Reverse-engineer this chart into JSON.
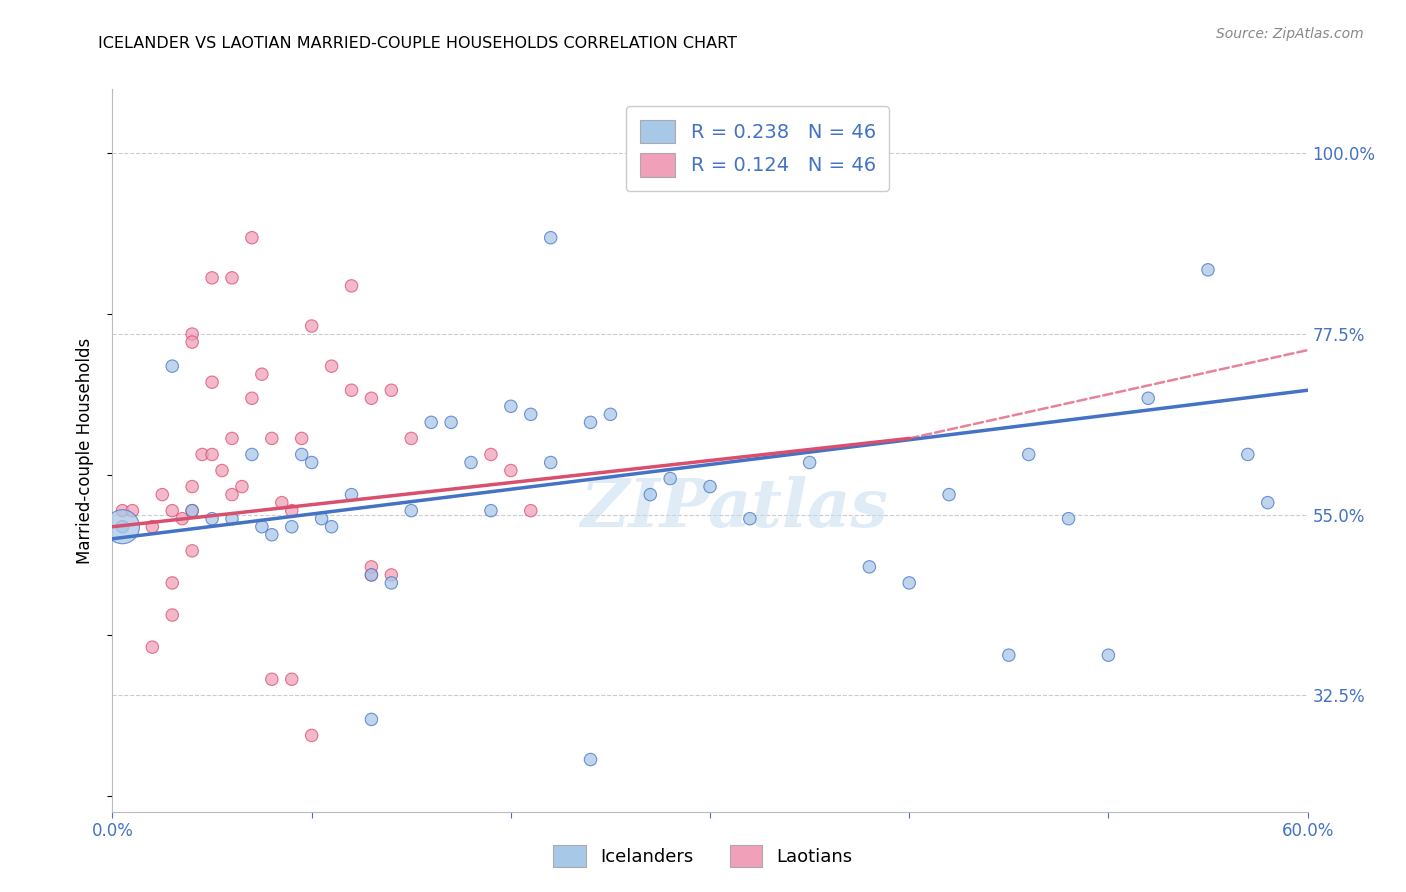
{
  "title": "ICELANDER VS LAOTIAN MARRIED-COUPLE HOUSEHOLDS CORRELATION CHART",
  "source": "Source: ZipAtlas.com",
  "ylabel": "Married-couple Households",
  "xlim": [
    0.0,
    0.6
  ],
  "ylim": [
    0.18,
    1.08
  ],
  "x_ticks": [
    0.0,
    0.1,
    0.2,
    0.3,
    0.4,
    0.5,
    0.6
  ],
  "x_tick_labels": [
    "0.0%",
    "",
    "",
    "",
    "",
    "",
    "60.0%"
  ],
  "y_ticks": [
    0.325,
    0.55,
    0.775,
    1.0
  ],
  "y_tick_labels": [
    "32.5%",
    "55.0%",
    "77.5%",
    "100.0%"
  ],
  "legend_blue_r": "0.238",
  "legend_blue_n": "46",
  "legend_pink_r": "0.124",
  "legend_pink_n": "46",
  "legend_label_blue": "Icelanders",
  "legend_label_pink": "Laotians",
  "blue_color": "#a8c8e8",
  "pink_color": "#f0a0b8",
  "line_blue": "#4472c4",
  "line_pink": "#d94f6e",
  "watermark": "ZIPatlas",
  "blue_x": [
    0.005,
    0.03,
    0.04,
    0.05,
    0.06,
    0.07,
    0.075,
    0.08,
    0.09,
    0.095,
    0.1,
    0.105,
    0.11,
    0.12,
    0.13,
    0.14,
    0.15,
    0.16,
    0.17,
    0.18,
    0.19,
    0.2,
    0.21,
    0.22,
    0.24,
    0.25,
    0.27,
    0.28,
    0.3,
    0.32,
    0.35,
    0.38,
    0.4,
    0.42,
    0.45,
    0.46,
    0.48,
    0.5,
    0.52,
    0.55,
    0.57,
    0.58,
    0.22,
    0.24,
    0.13,
    0.005
  ],
  "blue_y": [
    0.535,
    0.735,
    0.555,
    0.545,
    0.545,
    0.625,
    0.535,
    0.525,
    0.535,
    0.625,
    0.615,
    0.545,
    0.535,
    0.575,
    0.475,
    0.465,
    0.555,
    0.665,
    0.665,
    0.615,
    0.555,
    0.685,
    0.675,
    0.615,
    0.665,
    0.675,
    0.575,
    0.595,
    0.585,
    0.545,
    0.615,
    0.485,
    0.465,
    0.575,
    0.375,
    0.625,
    0.545,
    0.375,
    0.695,
    0.855,
    0.625,
    0.565,
    0.895,
    0.245,
    0.295,
    0.535
  ],
  "blue_size": [
    80,
    80,
    80,
    80,
    80,
    80,
    80,
    80,
    80,
    80,
    80,
    80,
    80,
    80,
    80,
    80,
    80,
    80,
    80,
    80,
    80,
    80,
    80,
    80,
    80,
    80,
    80,
    80,
    80,
    80,
    80,
    80,
    80,
    80,
    80,
    80,
    80,
    80,
    80,
    80,
    80,
    80,
    80,
    80,
    80,
    600
  ],
  "pink_x": [
    0.005,
    0.01,
    0.02,
    0.025,
    0.03,
    0.035,
    0.04,
    0.045,
    0.05,
    0.055,
    0.06,
    0.065,
    0.07,
    0.075,
    0.08,
    0.085,
    0.09,
    0.095,
    0.1,
    0.11,
    0.12,
    0.13,
    0.14,
    0.15,
    0.19,
    0.2,
    0.21,
    0.06,
    0.07,
    0.12,
    0.04,
    0.04,
    0.05,
    0.08,
    0.09,
    0.03,
    0.1,
    0.02,
    0.13,
    0.14,
    0.13,
    0.03,
    0.04,
    0.04,
    0.05,
    0.06
  ],
  "pink_y": [
    0.555,
    0.555,
    0.535,
    0.575,
    0.555,
    0.545,
    0.585,
    0.625,
    0.715,
    0.605,
    0.575,
    0.585,
    0.695,
    0.725,
    0.645,
    0.565,
    0.555,
    0.645,
    0.785,
    0.735,
    0.705,
    0.695,
    0.705,
    0.645,
    0.625,
    0.605,
    0.555,
    0.845,
    0.895,
    0.835,
    0.775,
    0.765,
    0.845,
    0.345,
    0.345,
    0.425,
    0.275,
    0.385,
    0.475,
    0.475,
    0.485,
    0.465,
    0.505,
    0.555,
    0.625,
    0.645
  ],
  "pink_size": [
    80,
    80,
    80,
    80,
    80,
    80,
    80,
    80,
    80,
    80,
    80,
    80,
    80,
    80,
    80,
    80,
    80,
    80,
    80,
    80,
    80,
    80,
    80,
    80,
    80,
    80,
    80,
    80,
    80,
    80,
    80,
    80,
    80,
    80,
    80,
    80,
    80,
    80,
    80,
    80,
    80,
    80,
    80,
    80,
    80,
    80
  ],
  "blue_line_x0": 0.0,
  "blue_line_y0": 0.52,
  "blue_line_x1": 0.6,
  "blue_line_y1": 0.705,
  "pink_line_solid_x0": 0.0,
  "pink_line_solid_y0": 0.535,
  "pink_line_solid_x1": 0.4,
  "pink_line_solid_y1": 0.645,
  "pink_line_dash_x0": 0.4,
  "pink_line_dash_y0": 0.645,
  "pink_line_dash_x1": 0.6,
  "pink_line_dash_y1": 0.755
}
